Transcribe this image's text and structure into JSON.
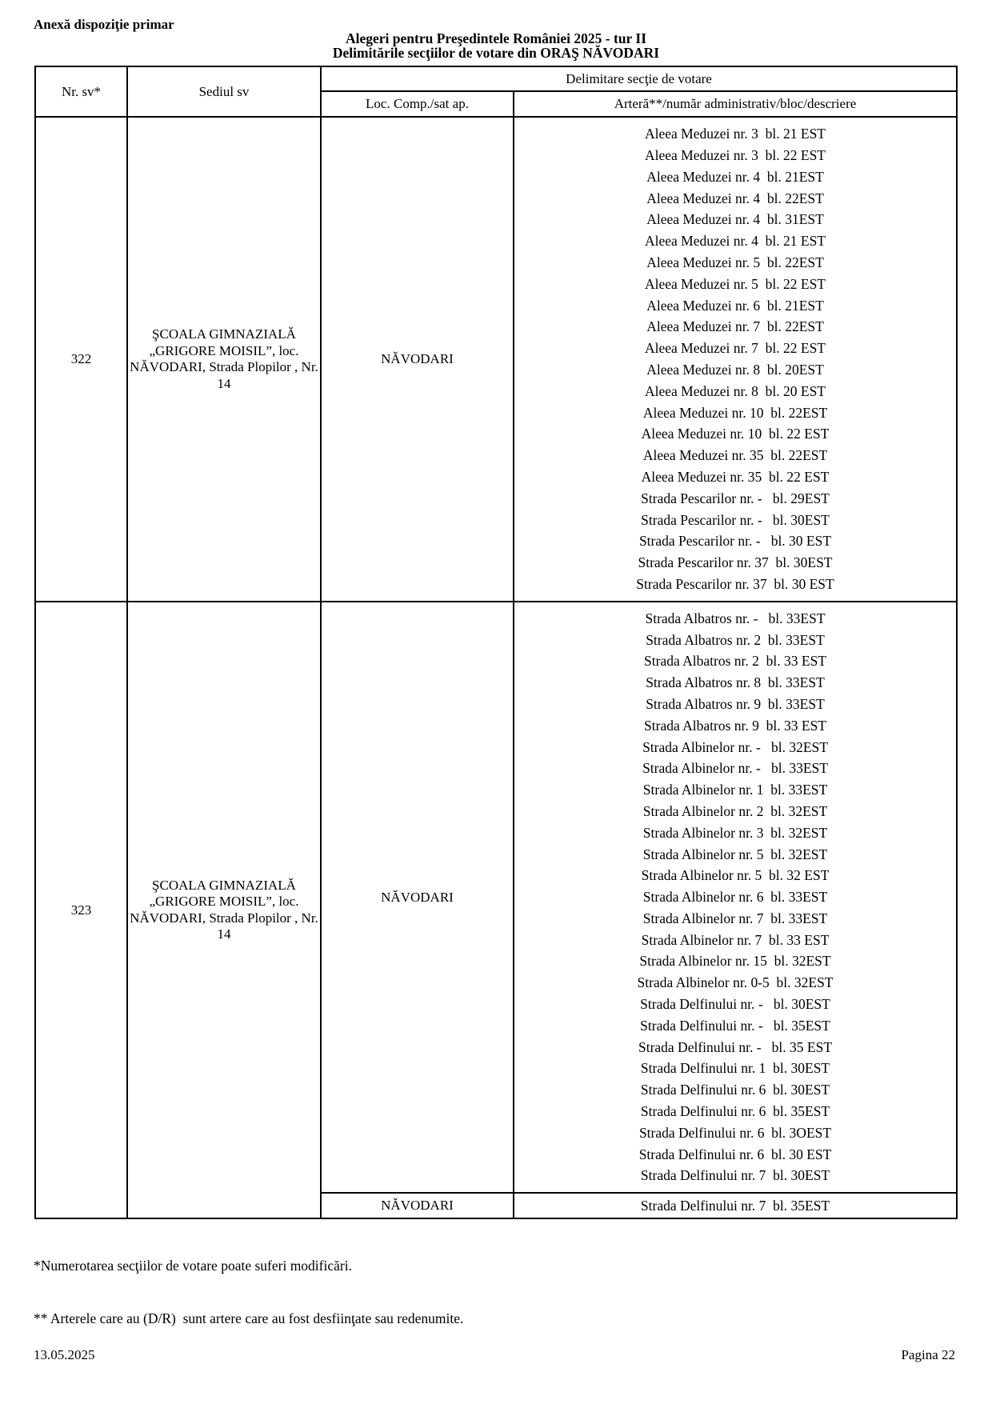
{
  "page": {
    "annex_label": "Anexă dispoziţie primar",
    "title_line1": "Alegeri pentru Preşedintele României 2025 - tur II",
    "title_line2": "Delimitările secţiilor de votare din ORAŞ NĂVODARI",
    "footnotes": {
      "line1": "*Numerotarea secţiilor de votare poate suferi modificări.",
      "line2": "** Arterele care au (D/R)  sunt artere care au fost desfiinţate sau redenumite."
    },
    "footer": {
      "date": "13.05.2025",
      "page_number": "Pagina 22"
    }
  },
  "table": {
    "headers": {
      "col_nr": "Nr. sv*",
      "col_sediu": "Sediul sv",
      "group": "Delimitare secţie de votare",
      "col_loc": "Loc. Comp./sat ap.",
      "col_artera": "Arteră**/număr administrativ/bloc/descriere"
    },
    "rows": [
      {
        "nr": "322",
        "sediu": "ŞCOALA GIMNAZIALĂ „GRIGORE MOISIL”, loc. NĂVODARI, Strada Plopilor , Nr. 14",
        "sections": [
          {
            "loc": "NĂVODARI",
            "streets": [
              "Aleea Meduzei nr. 3  bl. 21 EST",
              "Aleea Meduzei nr. 3  bl. 22 EST",
              "Aleea Meduzei nr. 4  bl. 21EST",
              "Aleea Meduzei nr. 4  bl. 22EST",
              "Aleea Meduzei nr. 4  bl. 31EST",
              "Aleea Meduzei nr. 4  bl. 21 EST",
              "Aleea Meduzei nr. 5  bl. 22EST",
              "Aleea Meduzei nr. 5  bl. 22 EST",
              "Aleea Meduzei nr. 6  bl. 21EST",
              "Aleea Meduzei nr. 7  bl. 22EST",
              "Aleea Meduzei nr. 7  bl. 22 EST",
              "Aleea Meduzei nr. 8  bl. 20EST",
              "Aleea Meduzei nr. 8  bl. 20 EST",
              "Aleea Meduzei nr. 10  bl. 22EST",
              "Aleea Meduzei nr. 10  bl. 22 EST",
              "Aleea Meduzei nr. 35  bl. 22EST",
              "Aleea Meduzei nr. 35  bl. 22 EST",
              "Strada Pescarilor nr. -   bl. 29EST",
              "Strada Pescarilor nr. -   bl. 30EST",
              "Strada Pescarilor nr. -   bl. 30 EST",
              "Strada Pescarilor nr. 37  bl. 30EST",
              "Strada Pescarilor nr. 37  bl. 30 EST"
            ]
          }
        ]
      },
      {
        "nr": "323",
        "sediu": "ŞCOALA GIMNAZIALĂ „GRIGORE MOISIL”, loc. NĂVODARI, Strada Plopilor , Nr. 14",
        "sections": [
          {
            "loc": "NĂVODARI",
            "streets": [
              "Strada Albatros nr. -   bl. 33EST",
              "Strada Albatros nr. 2  bl. 33EST",
              "Strada Albatros nr. 2  bl. 33 EST",
              "Strada Albatros nr. 8  bl. 33EST",
              "Strada Albatros nr. 9  bl. 33EST",
              "Strada Albatros nr. 9  bl. 33 EST",
              "Strada Albinelor nr. -   bl. 32EST",
              "Strada Albinelor nr. -   bl. 33EST",
              "Strada Albinelor nr. 1  bl. 33EST",
              "Strada Albinelor nr. 2  bl. 32EST",
              "Strada Albinelor nr. 3  bl. 32EST",
              "Strada Albinelor nr. 5  bl. 32EST",
              "Strada Albinelor nr. 5  bl. 32 EST",
              "Strada Albinelor nr. 6  bl. 33EST",
              "Strada Albinelor nr. 7  bl. 33EST",
              "Strada Albinelor nr. 7  bl. 33 EST",
              "Strada Albinelor nr. 15  bl. 32EST",
              "Strada Albinelor nr. 0-5  bl. 32EST",
              "Strada Delfinului nr. -   bl. 30EST",
              "Strada Delfinului nr. -   bl. 35EST",
              "Strada Delfinului nr. -   bl. 35 EST",
              "Strada Delfinului nr. 1  bl. 30EST",
              "Strada Delfinului nr. 6  bl. 30EST",
              "Strada Delfinului nr. 6  bl. 35EST",
              "Strada Delfinului nr. 6  bl. 3OEST",
              "Strada Delfinului nr. 6  bl. 30 EST",
              "Strada Delfinului nr. 7  bl. 30EST"
            ]
          },
          {
            "loc": "NĂVODARI",
            "streets": [
              "Strada Delfinului nr. 7  bl. 35EST"
            ]
          }
        ]
      }
    ]
  }
}
